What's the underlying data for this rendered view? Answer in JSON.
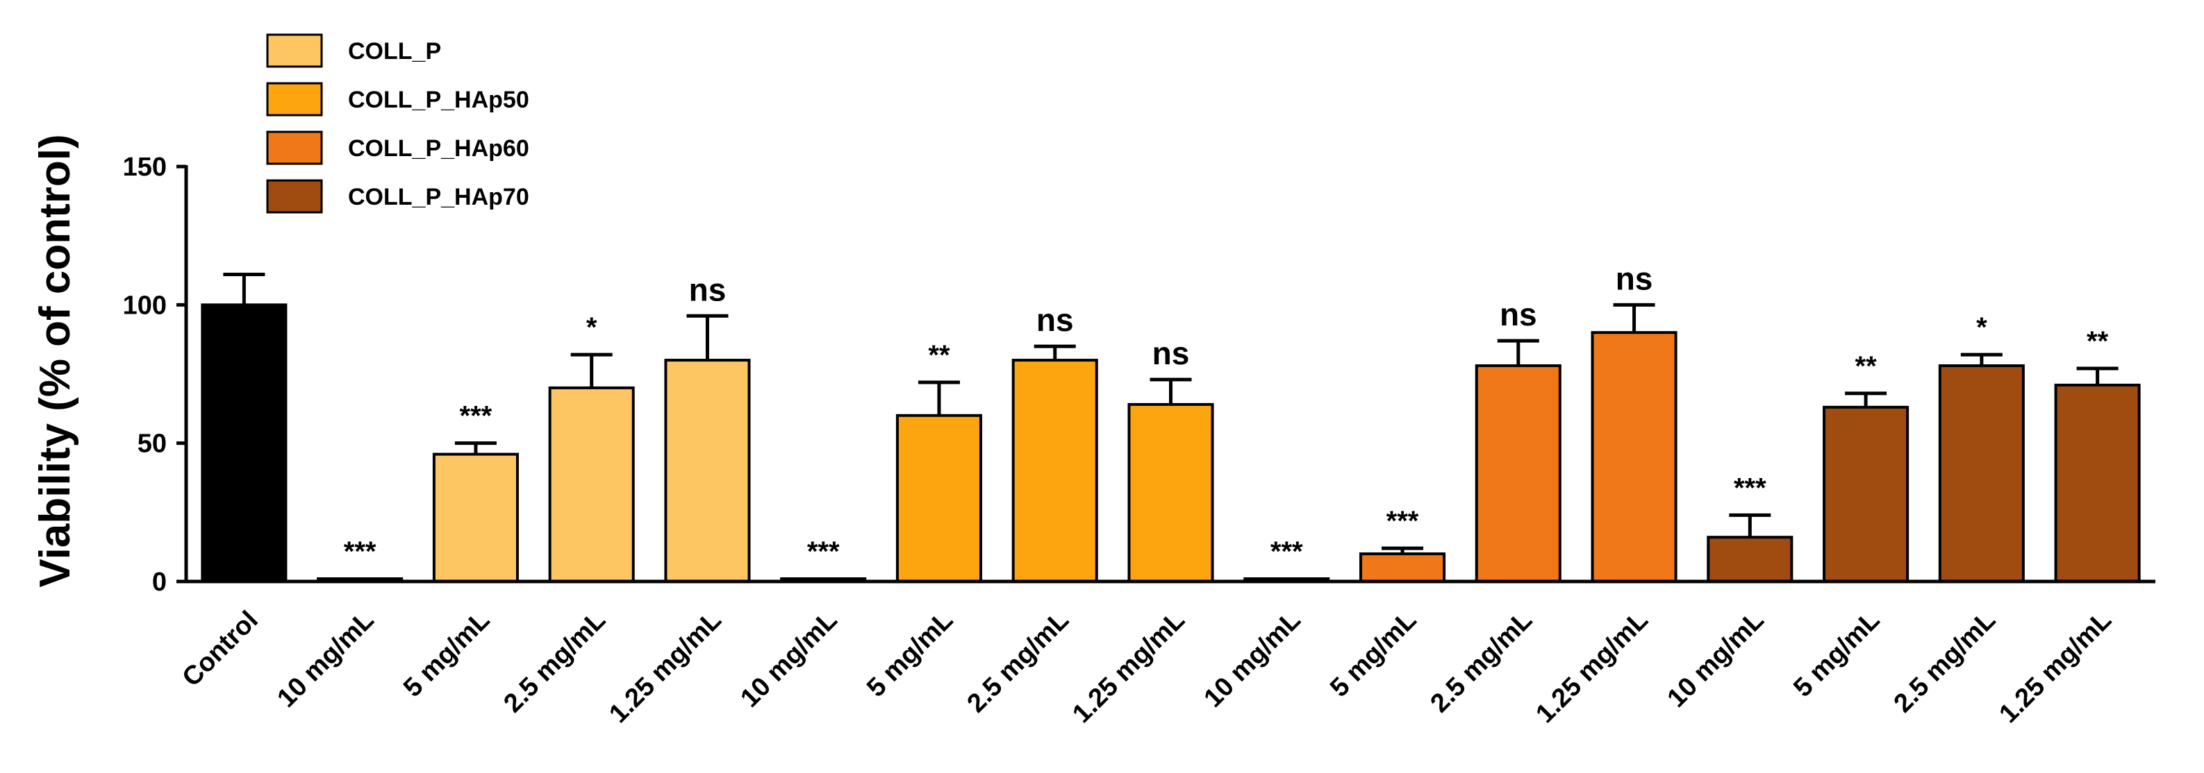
{
  "chart_data": {
    "type": "bar",
    "ylabel": "Viability (% of control)",
    "ylim": [
      0,
      150
    ],
    "yticks": [
      0,
      50,
      100,
      150
    ],
    "grid": false,
    "legend_position": "top-left",
    "categories": [
      "Control",
      "10 mg/mL",
      "5 mg/mL",
      "2.5 mg/mL",
      "1.25 mg/mL",
      "10 mg/mL",
      "5 mg/mL",
      "2.5 mg/mL",
      "1.25 mg/mL",
      "10 mg/mL",
      "5 mg/mL",
      "2.5 mg/mL",
      "1.25 mg/mL",
      "10 mg/mL",
      "5 mg/mL",
      "2.5 mg/mL",
      "1.25 mg/mL"
    ],
    "values": [
      100,
      1,
      46,
      70,
      80,
      1,
      60,
      80,
      64,
      1,
      10,
      78,
      90,
      16,
      63,
      78,
      71
    ],
    "errors": [
      11,
      0,
      4,
      12,
      16,
      0,
      12,
      5,
      9,
      0,
      2,
      9,
      10,
      8,
      5,
      4,
      6
    ],
    "significance": [
      "",
      "***",
      "***",
      "*",
      "ns",
      "***",
      "**",
      "ns",
      "ns",
      "***",
      "***",
      "ns",
      "ns",
      "***",
      "**",
      "*",
      "**"
    ],
    "bar_series": [
      -1,
      0,
      0,
      0,
      0,
      1,
      1,
      1,
      1,
      2,
      2,
      2,
      2,
      3,
      3,
      3,
      3
    ],
    "control_color": "#000000",
    "series": [
      {
        "name": "COLL_P",
        "color": "#FDC662"
      },
      {
        "name": "COLL_P_HAp50",
        "color": "#FDA50F"
      },
      {
        "name": "COLL_P_HAp60",
        "color": "#F07818"
      },
      {
        "name": "COLL_P_HAp70",
        "color": "#A04C10"
      }
    ]
  }
}
